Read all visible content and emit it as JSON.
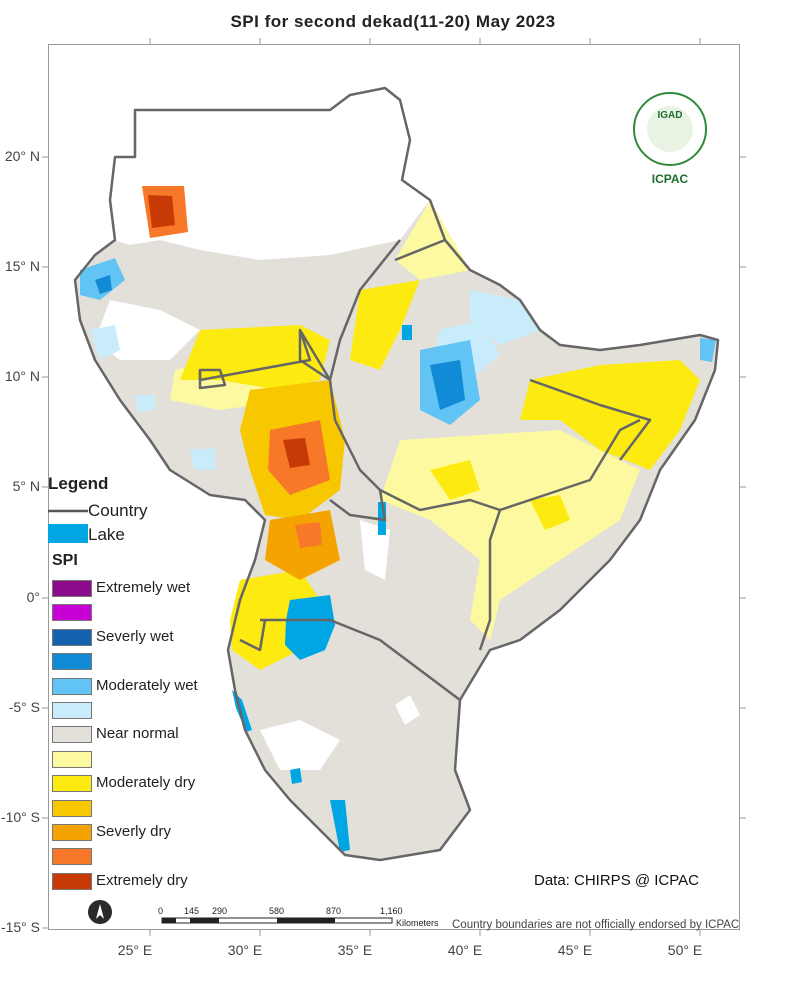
{
  "title": "SPI  for  second dekad(11-20)  May 2023",
  "lat_labels": [
    "20° N",
    "15° N",
    "10° N",
    "5° N",
    "0°",
    "-5° S",
    "-10° S",
    "-15° S"
  ],
  "lon_labels": [
    "25° E",
    "30° E",
    "35° E",
    "40° E",
    "45° E",
    "50° E"
  ],
  "legend": {
    "title": "Legend",
    "country_label": "Country",
    "lake_label": "Lake",
    "spi_title": "SPI",
    "lake_color": "#00a5e3",
    "classes": [
      {
        "label": "Extremely wet",
        "color": "#8b0b8b"
      },
      {
        "label": "",
        "color": "#c700d6"
      },
      {
        "label": "Severly wet",
        "color": "#1563b0"
      },
      {
        "label": "",
        "color": "#118bd6"
      },
      {
        "label": "Moderately wet",
        "color": "#62c3f5"
      },
      {
        "label": "",
        "color": "#c9ecfb"
      },
      {
        "label": "Near normal",
        "color": "#e3e0da"
      },
      {
        "label": "",
        "color": "#fdf9a0"
      },
      {
        "label": "Moderately dry",
        "color": "#fcea10"
      },
      {
        "label": "",
        "color": "#f7c800"
      },
      {
        "label": "Severly dry",
        "color": "#f5a300"
      },
      {
        "label": "",
        "color": "#f8782a"
      },
      {
        "label": "Extremely dry",
        "color": "#c83a05"
      }
    ]
  },
  "logo": {
    "name": "IGAD",
    "org": "ICPAC"
  },
  "credit": "Data: CHIRPS @ ICPAC",
  "scalebar": {
    "ticks": [
      "0",
      "145",
      "290",
      "580",
      "870",
      "1,160"
    ],
    "unit": "Kilometers"
  },
  "disclaimer": "Country boundaries are not officially endorsed by ICPAC"
}
